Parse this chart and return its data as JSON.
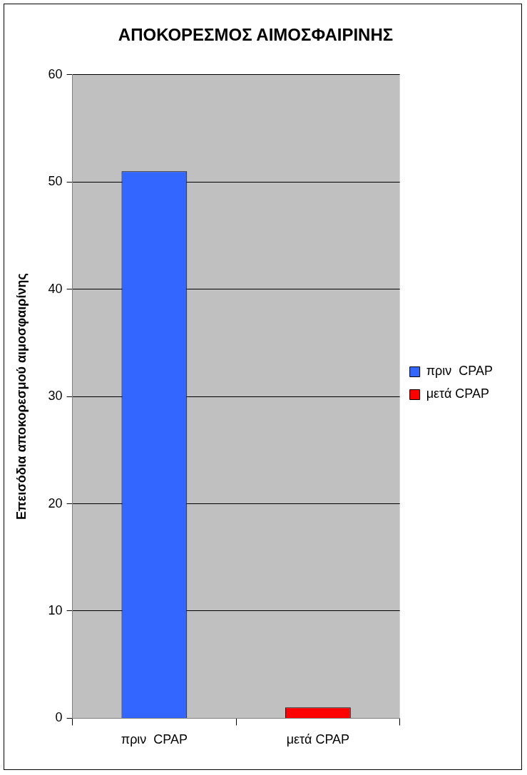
{
  "chart_data": {
    "type": "bar",
    "title": "ΑΠΟΚΟΡΕΣΜΟΣ ΑΙΜΟΣΦΑΙΡΙΝΗΣ",
    "ylabel": "Επεισόδια αποκορεσμού αιμοσφαιρίνης",
    "categories": [
      "πριν  CPAP",
      "μετά CPAP"
    ],
    "series": [
      {
        "name": "πριν  CPAP",
        "color": "#3366ff",
        "values": [
          51,
          null
        ]
      },
      {
        "name": "μετά CPAP",
        "color": "#ff0000",
        "values": [
          null,
          1
        ]
      }
    ],
    "ylim": [
      0,
      60
    ],
    "yticks": [
      0,
      10,
      20,
      30,
      40,
      50,
      60
    ],
    "grid": "y",
    "legend": "right"
  }
}
